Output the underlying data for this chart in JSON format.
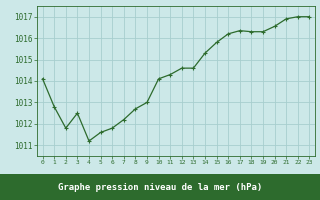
{
  "x": [
    0,
    1,
    2,
    3,
    4,
    5,
    6,
    7,
    8,
    9,
    10,
    11,
    12,
    13,
    14,
    15,
    16,
    17,
    18,
    19,
    20,
    21,
    22,
    23
  ],
  "y": [
    1014.1,
    1012.8,
    1011.8,
    1012.5,
    1011.2,
    1011.6,
    1011.8,
    1012.2,
    1012.7,
    1013.0,
    1014.1,
    1014.3,
    1014.6,
    1014.6,
    1015.3,
    1015.8,
    1016.2,
    1016.35,
    1016.3,
    1016.3,
    1016.55,
    1016.9,
    1017.0,
    1017.0
  ],
  "bg_color": "#cce8e8",
  "grid_color": "#a8cece",
  "line_color": "#2d6b2d",
  "marker_color": "#2d6b2d",
  "title": "Graphe pression niveau de la mer (hPa)",
  "title_bg": "#2d6b2d",
  "title_text_color": "#ffffff",
  "ylim": [
    1010.5,
    1017.5
  ],
  "yticks": [
    1011,
    1012,
    1013,
    1014,
    1015,
    1016,
    1017
  ],
  "xlim": [
    -0.5,
    23.5
  ],
  "xticks": [
    0,
    1,
    2,
    3,
    4,
    5,
    6,
    7,
    8,
    9,
    10,
    11,
    12,
    13,
    14,
    15,
    16,
    17,
    18,
    19,
    20,
    21,
    22,
    23
  ]
}
